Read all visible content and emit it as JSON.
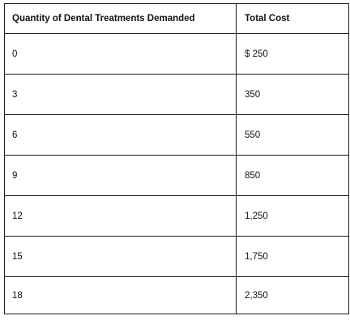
{
  "table": {
    "headers": [
      "Quantity of Dental Treatments Demanded",
      "Total Cost"
    ],
    "rows": [
      {
        "quantity": "0",
        "total_cost": "$ 250"
      },
      {
        "quantity": "3",
        "total_cost": "350"
      },
      {
        "quantity": "6",
        "total_cost": "550"
      },
      {
        "quantity": "9",
        "total_cost": "850"
      },
      {
        "quantity": "12",
        "total_cost": "1,250"
      },
      {
        "quantity": "15",
        "total_cost": "1,750"
      },
      {
        "quantity": "18",
        "total_cost": "2,350"
      }
    ]
  }
}
